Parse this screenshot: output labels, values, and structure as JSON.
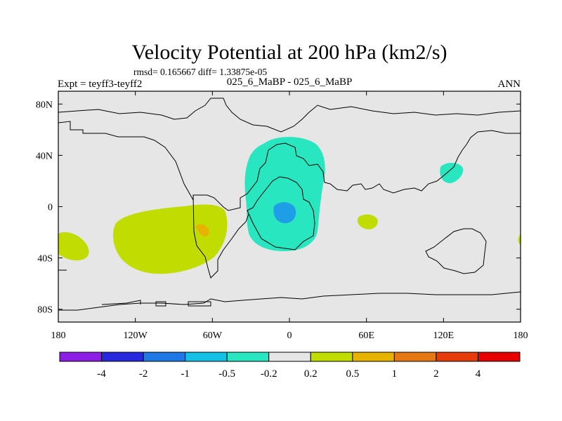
{
  "chart_data": {
    "type": "heatmap",
    "title": "Velocity Potential at 200 hPa (km2/s)",
    "stats": "rmsd= 0.165667 diff= 1.33875e-05",
    "left_label": "Expt = teyff3-teyff2",
    "center_label": "025_6_MaBP - 025_6_MaBP",
    "right_label": "ANN",
    "x_ticks": [
      {
        "value": -180,
        "label": "180"
      },
      {
        "value": -120,
        "label": "120W"
      },
      {
        "value": -60,
        "label": "60W"
      },
      {
        "value": 0,
        "label": "0"
      },
      {
        "value": 60,
        "label": "60E"
      },
      {
        "value": 120,
        "label": "120E"
      },
      {
        "value": 180,
        "label": "180"
      }
    ],
    "y_ticks": [
      {
        "value": 80,
        "label": "80N"
      },
      {
        "value": 40,
        "label": "40N"
      },
      {
        "value": 0,
        "label": "0"
      },
      {
        "value": -40,
        "label": "40S"
      },
      {
        "value": -80,
        "label": "80S"
      }
    ],
    "xlim": [
      -180,
      180
    ],
    "ylim": [
      -90,
      90
    ],
    "colorbar": {
      "colors": [
        "#8c1ee6",
        "#2828dc",
        "#1e78e6",
        "#14c0e6",
        "#28e6c0",
        "#e6e6e6",
        "#c0dc00",
        "#e6b400",
        "#e67814",
        "#e63c0a",
        "#e60000"
      ],
      "labels": [
        "-4",
        "-2",
        "-1",
        "-0.5",
        "-0.2",
        "0.2",
        "0.5",
        "1",
        "2",
        "4"
      ]
    },
    "background_color": "#e6e6e6",
    "anomalies": [
      {
        "name": "eastern Pacific positive",
        "level": "0.2 to 0.5",
        "center_lon": -90,
        "center_lat": -20
      },
      {
        "name": "south Pacific positive",
        "level": "0.2 to 0.5",
        "center_lon": -170,
        "center_lat": -30
      },
      {
        "name": "Indian Ocean positive",
        "level": "0.2 to 0.5",
        "center_lon": 60,
        "center_lat": -10
      },
      {
        "name": "Atlantic/Africa negative",
        "level": "-0.5 to -0.2",
        "center_lon": -5,
        "center_lat": 20
      },
      {
        "name": "Atlantic negative core",
        "level": "-1 to -0.5",
        "center_lon": -5,
        "center_lat": -3
      },
      {
        "name": "western Pacific negative",
        "level": "-0.5 to -0.2",
        "center_lon": 128,
        "center_lat": 27
      },
      {
        "name": "eastern Pacific positive core",
        "level": "0.5 to 1",
        "center_lon": -66,
        "center_lat": -18
      }
    ]
  }
}
